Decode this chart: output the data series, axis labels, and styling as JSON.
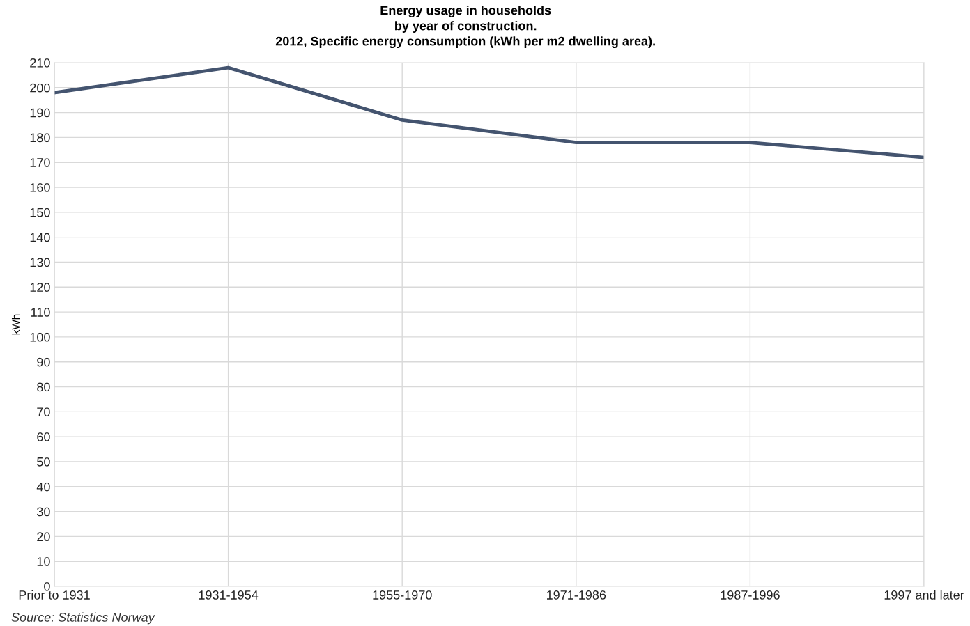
{
  "chart_data": {
    "type": "line",
    "title": "Energy usage in households\nby year of construction.\n2012, Specific energy consumption (kWh per m2 dwelling area).",
    "ylabel": "kWh",
    "categories": [
      "Prior to 1931",
      "1931-1954",
      "1955-1970",
      "1971-1986",
      "1987-1996",
      "1997 and later"
    ],
    "series": [
      {
        "color": "#44546f",
        "values": [
          198,
          208,
          187,
          178,
          178,
          172
        ]
      }
    ],
    "ylim": [
      0,
      210
    ],
    "yticks": [
      0,
      10,
      20,
      30,
      40,
      50,
      60,
      70,
      80,
      90,
      100,
      110,
      120,
      130,
      140,
      150,
      160,
      170,
      180,
      190,
      200,
      210
    ],
    "grid": true,
    "line_style": "solid",
    "annotations": [
      "Source: Statistics Norway"
    ]
  }
}
